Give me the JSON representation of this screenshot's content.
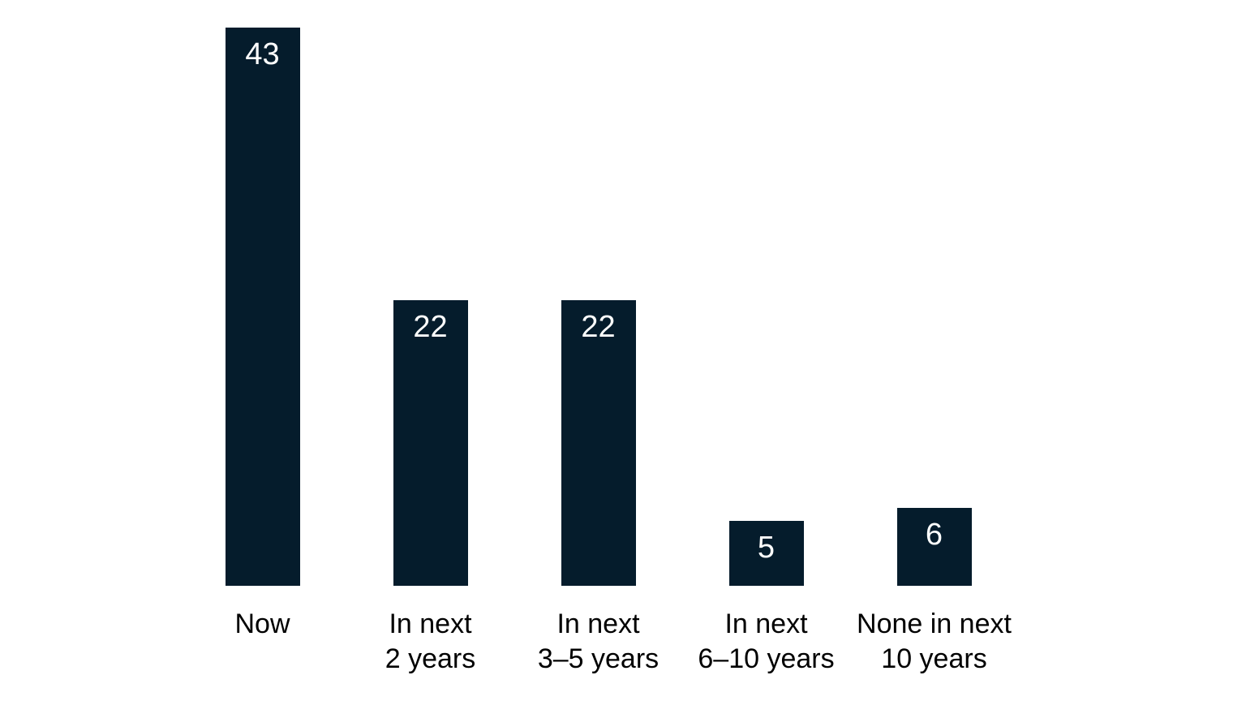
{
  "chart_data": {
    "type": "bar",
    "title": "",
    "xlabel": "",
    "ylabel": "",
    "categories": [
      "Now",
      "In next\n2 years",
      "In next\n3–5 years",
      "In next\n6–10 years",
      "None in next\n10 years"
    ],
    "values": [
      43,
      22,
      22,
      5,
      6
    ],
    "ylim": [
      0,
      45
    ],
    "grid": false,
    "legend": false,
    "axes_visible": false,
    "data_labels_position": "inside-top",
    "colors": {
      "bar": "#051c2c",
      "value_label": "#ffffff",
      "category_label": "#000000",
      "background": "#ffffff"
    }
  }
}
